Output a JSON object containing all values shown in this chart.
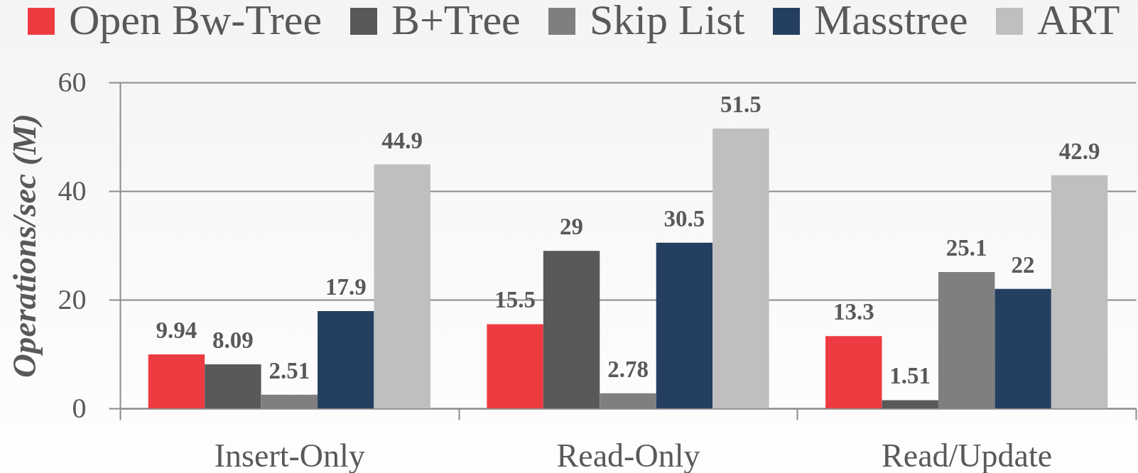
{
  "chart_data": {
    "type": "bar",
    "ylabel": "Operations/sec (M)",
    "categories": [
      "Insert-Only",
      "Read-Only",
      "Read/Update"
    ],
    "series": [
      {
        "name": "Open Bw-Tree",
        "color": "#ee3b42",
        "values": [
          9.94,
          15.5,
          13.3
        ]
      },
      {
        "name": "B+Tree",
        "color": "#595959",
        "values": [
          8.09,
          29,
          1.51
        ]
      },
      {
        "name": "Skip List",
        "color": "#7f7f7f",
        "values": [
          2.51,
          2.78,
          25.1
        ]
      },
      {
        "name": "Masstree",
        "color": "#243f60",
        "values": [
          17.9,
          30.5,
          22
        ]
      },
      {
        "name": "ART",
        "color": "#bfbfbf",
        "values": [
          44.9,
          51.5,
          42.9
        ]
      }
    ],
    "ylim": [
      0,
      60
    ],
    "yticks": [
      0,
      20,
      40,
      60
    ],
    "grid": "y",
    "legend": "top",
    "data_labels": true
  }
}
